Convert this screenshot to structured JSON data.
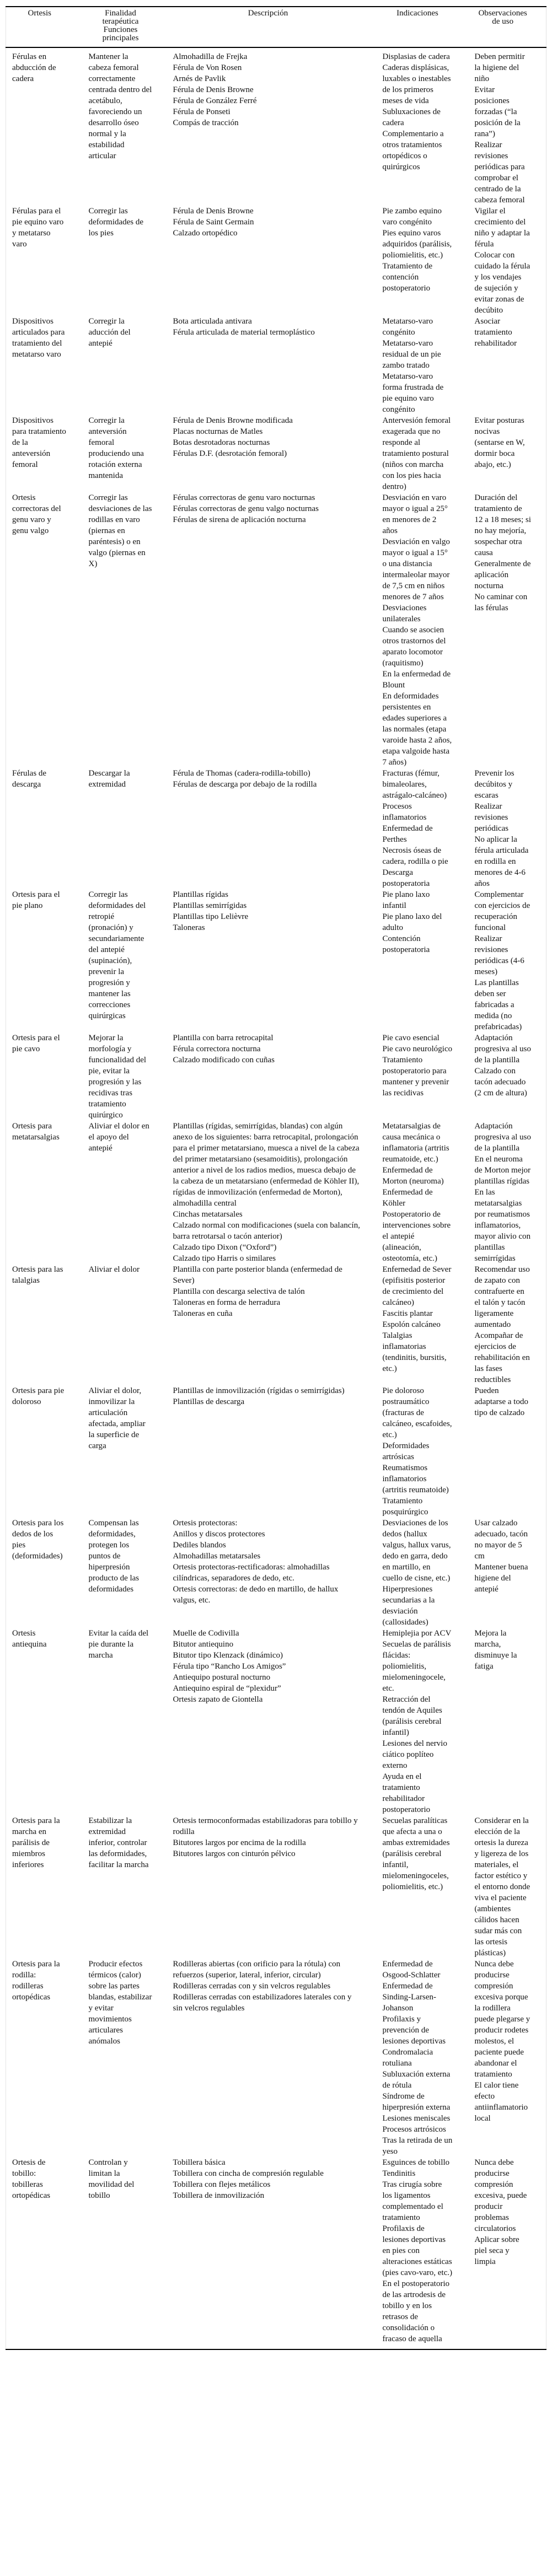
{
  "headers": {
    "ortesis": "Ortesis",
    "finalidad": "Finalidad terapéutica Funciones principales",
    "descripcion": "Descripción",
    "indicaciones": "Indicaciones",
    "observaciones": "Observaciones de uso"
  },
  "rows": [
    {
      "ortesis": [
        "Férulas en abducción de cadera"
      ],
      "finalidad": [
        "Mantener la cabeza femoral correctamente centrada dentro del acetábulo, favoreciendo un desarrollo óseo normal y la estabilidad articular"
      ],
      "descripcion": [
        "Almohadilla de Frejka",
        "Férula de Von Rosen",
        "Arnés de Pavlik",
        "Férula de Denis Browne",
        "Férula de González Ferré",
        "Férula de Ponseti",
        "Compás de tracción"
      ],
      "indicaciones": [
        "Displasias de cadera",
        "Caderas displásicas, luxables o inestables de los primeros meses de vida",
        "Subluxaciones de cadera",
        "Complementario a otros tratamientos ortopédicos o quirúrgicos"
      ],
      "observaciones": [
        "Deben permitir la higiene del niño",
        "Evitar posiciones forzadas (“la posición de la rana”)",
        "Realizar revisiones periódicas para comprobar el centrado de la cabeza femoral"
      ]
    },
    {
      "ortesis": [
        "Férulas para el pie equino varo y metatarso varo"
      ],
      "finalidad": [
        "Corregir las deformidades de los pies"
      ],
      "descripcion": [
        "Férula de Denis Browne",
        "Férula de Saint Germain",
        "Calzado ortopédico"
      ],
      "indicaciones": [
        "Pie zambo equino varo congénito",
        "Pies equino varos adquiridos (parálisis, poliomielitis, etc.)",
        "Tratamiento de contención postoperatorio"
      ],
      "observaciones": [
        "Vigilar el crecimiento del niño y adaptar la férula",
        "Colocar con cuidado la férula y los vendajes de sujeción y evitar zonas de decúbito"
      ]
    },
    {
      "ortesis": [
        "Dispositivos articulados para tratamiento del metatarso varo"
      ],
      "finalidad": [
        "Corregir la aducción del antepié"
      ],
      "descripcion": [
        "Bota articulada antivara",
        "Férula articulada de material termoplástico"
      ],
      "indicaciones": [
        "Metatarso-varo congénito",
        "Metatarso-varo residual de un pie zambo tratado",
        "Metatarso-varo forma frustrada de pie equino varo congénito"
      ],
      "observaciones": [
        "Asociar tratamiento rehabilitador"
      ]
    },
    {
      "ortesis": [
        "Dispositivos para tratamiento de la anteversión femoral"
      ],
      "finalidad": [
        "Corregir la anteversión femoral produciendo una rotación externa mantenida"
      ],
      "descripcion": [
        "Férula de Denis Browne modificada",
        "Placas nocturnas de Matles",
        "Botas desrotadoras nocturnas",
        "Férulas D.F. (desrotación femoral)"
      ],
      "indicaciones": [
        "Antervesión femoral exagerada que no responde al tratamiento postural (niños con marcha con los pies hacia dentro)"
      ],
      "observaciones": [
        "Evitar posturas nocivas (sentarse en W, dormir boca abajo, etc.)"
      ]
    },
    {
      "ortesis": [
        "Ortesis correctoras del genu varo y genu valgo"
      ],
      "finalidad": [
        "Corregir las desviaciones de las rodillas en varo (piernas en paréntesis) o en valgo (piernas en X)"
      ],
      "descripcion": [
        "Férulas correctoras de genu varo nocturnas",
        "Férulas correctoras de genu valgo nocturnas",
        "Férulas de sirena de aplicación nocturna"
      ],
      "indicaciones": [
        "Desviación en varo mayor o igual a 25° en menores de 2 años",
        "Desviación en valgo mayor o igual a 15° o una distancia intermaleolar mayor de 7,5 cm en niños menores de 7 años",
        "Desviaciones unilaterales",
        "Cuando se asocien otros trastornos del aparato locomotor (raquitismo)",
        "En la enfermedad de Blount",
        "En deformidades persistentes en edades superiores a las normales (etapa varoide hasta 2 años, etapa valgoide hasta 7 años)"
      ],
      "observaciones": [
        "Duración del tratamiento de 12 a 18 meses; si no hay mejoría, sospechar otra causa",
        "Generalmente de aplicación nocturna",
        "No caminar con las férulas"
      ]
    },
    {
      "ortesis": [
        "Férulas de descarga"
      ],
      "finalidad": [
        "Descargar la extremidad"
      ],
      "descripcion": [
        "Férula de Thomas (cadera-rodilla-tobillo)",
        "Férulas de descarga por debajo de la rodilla"
      ],
      "indicaciones": [
        "Fracturas (fémur, bimaleolares, astrágalo-calcáneo)",
        "Procesos inflamatorios",
        "Enfermedad de Perthes",
        "Necrosis óseas de cadera, rodilla o pie",
        "Descarga postoperatoria"
      ],
      "observaciones": [
        "Prevenir los decúbitos y escaras",
        "Realizar revisiones periódicas",
        "No aplicar la férula articulada en rodilla en menores de 4-6 años"
      ]
    },
    {
      "ortesis": [
        "Ortesis para el pie plano"
      ],
      "finalidad": [
        "Corregir las deformidades del retropié (pronación) y secundariamente del antepié (supinación), prevenir la progresión y mantener las correcciones quirúrgicas"
      ],
      "descripcion": [
        "Plantillas rígidas",
        "Plantillas semirrígidas",
        "Plantillas tipo Lelièvre",
        "Taloneras"
      ],
      "indicaciones": [
        "Pie plano laxo infantil",
        "Pie plano laxo del adulto",
        "Contención postoperatoria"
      ],
      "observaciones": [
        "Complementar con ejercicios de recuperación funcional",
        "Realizar revisiones periódicas (4-6 meses)",
        "Las plantillas deben ser fabricadas a medida (no prefabricadas)"
      ]
    },
    {
      "ortesis": [
        "Ortesis para el pie cavo"
      ],
      "finalidad": [
        "Mejorar la morfología y funcionalidad del pie, evitar la progresión y las recidivas tras tratamiento quirúrgico"
      ],
      "descripcion": [
        "Plantilla con barra retrocapital",
        "Férula correctora nocturna",
        "Calzado modificado con cuñas"
      ],
      "indicaciones": [
        "Pie cavo esencial",
        "Pie cavo neurológico",
        "Tratamiento postoperatorio para mantener y prevenir las recidivas"
      ],
      "observaciones": [
        "Adaptación progresiva al uso de la plantilla",
        "Calzado con tacón adecuado (2 cm de altura)"
      ]
    },
    {
      "ortesis": [
        "Ortesis para metatarsalgias"
      ],
      "finalidad": [
        "Aliviar el dolor en el apoyo del antepié"
      ],
      "descripcion": [
        "Plantillas (rígidas, semirrígidas, blandas) con algún anexo de los siguientes: barra retrocapital, prolongación para el primer metatarsiano, muesca a nivel de la cabeza del primer metatarsiano (sesamoiditis), prolongación anterior a nivel de los radios medios, muesca debajo de la cabeza de un metatarsiano (enfermedad de Köhler II), rígidas de inmovilización (enfermedad de Morton), almohadilla central",
        "Cinchas metatarsales",
        "Calzado normal con modificaciones (suela con balancín, barra retrotarsal o tacón anterior)",
        "Calzado tipo Dixon (“Oxford”)",
        "Calzado tipo Harris o similares"
      ],
      "indicaciones": [
        "Metatarsalgias de causa mecánica o inflamatoria (artritis reumatoide, etc.)",
        "Enfermedad de Morton (neuroma)",
        "Enfermedad de Köhler",
        "Postoperatorio de intervenciones sobre el antepié (alineación, osteotomía, etc.)"
      ],
      "observaciones": [
        "Adaptación progresiva al uso de la plantilla",
        "En el neuroma de Morton mejor plantillas rígidas",
        "En las metatarsalgias por reumatismos inflamatorios, mayor alivio con plantillas semirrígidas"
      ]
    },
    {
      "ortesis": [
        "Ortesis para las talalgias"
      ],
      "finalidad": [
        "Aliviar el dolor"
      ],
      "descripcion": [
        "Plantilla con parte posterior blanda (enfermedad de Sever)",
        "Plantilla con descarga selectiva de talón",
        "Taloneras en forma de herradura",
        "Taloneras en cuña"
      ],
      "indicaciones": [
        "Enfernedad de Sever (epifisitis posterior de crecimiento del calcáneo)",
        "Fascitis plantar",
        "Espolón calcáneo",
        "Talalgias inflamatorias (tendinitis, bursitis, etc.)"
      ],
      "observaciones": [
        "Recomendar uso de zapato con contrafuerte en el talón y tacón ligeramente aumentado",
        "Acompañar de ejercicios de rehabilitación en las fases reductibles"
      ]
    },
    {
      "ortesis": [
        "Ortesis para pie doloroso"
      ],
      "finalidad": [
        "Aliviar el dolor, inmovilizar la articulación afectada, ampliar la superficie de carga"
      ],
      "descripcion": [
        "Plantillas de inmovilización (rígidas o semirrígidas)",
        "Plantillas de descarga"
      ],
      "indicaciones": [
        "Pie doloroso postraumático (fracturas de calcáneo, escafoides, etc.)",
        "Deformidades artrósicas",
        "Reumatismos inflamatorios (artritis reumatoide)",
        "Tratamiento posquirúrgico"
      ],
      "observaciones": [
        "Pueden adaptarse a todo tipo de calzado"
      ]
    },
    {
      "ortesis": [
        "Ortesis para los dedos de los pies (deformidades)"
      ],
      "finalidad": [
        "Compensan las deformidades, protegen los puntos de hiperpresión producto de las deformidades"
      ],
      "descripcion": [
        "Ortesis protectoras:",
        "Anillos y discos protectores",
        "Dediles blandos",
        "Almohadillas metatarsales",
        "Ortesis protectoras-rectificadoras: almohadillas cilíndricas, separadores de dedo, etc.",
        "Ortesis correctoras: de dedo en martillo, de hallux valgus, etc."
      ],
      "indicaciones": [
        "Desviaciones de los dedos (hallux valgus, hallux varus, dedo en garra, dedo en martillo, en cuello de cisne, etc.)",
        "Hiperpresiones secundarias a la desviación (callosidades)"
      ],
      "observaciones": [
        "Usar calzado adecuado, tacón no mayor de 5 cm",
        "Mantener buena higiene del antepié"
      ]
    },
    {
      "ortesis": [
        "Ortesis antiequina"
      ],
      "finalidad": [
        "Evitar la caída del pie durante la marcha"
      ],
      "descripcion": [
        "Muelle de Codivilla",
        "Bitutor antiequino",
        "Bitutor tipo Klenzack (dinámico)",
        "Férula tipo “Rancho Los Amigos”",
        "Antiequipo postural nocturno",
        "Antiequino espiral de “plexidur”",
        "Ortesis zapato de Giontella"
      ],
      "indicaciones": [
        "Hemiplejia por ACV",
        "Secuelas de parálisis flácidas: poliomielitis, mielomeningocele, etc.",
        "Retracción del tendón de Aquiles (parálisis cerebral infantil)",
        "Lesiones del nervio ciático poplíteo externo",
        "Ayuda en el tratamiento rehabilitador postoperatorio"
      ],
      "observaciones": [
        "Mejora la marcha, disminuye la fatiga"
      ]
    },
    {
      "ortesis": [
        "Ortesis para la marcha en parálisis de miembros inferiores"
      ],
      "finalidad": [
        "Estabilizar la extremidad inferior, controlar las deformidades, facilitar la marcha"
      ],
      "descripcion": [
        "Ortesis termoconformadas estabilizadoras para tobillo y rodilla",
        "Bitutores largos por encima de la rodilla",
        "Bitutores largos con cinturón pélvico"
      ],
      "indicaciones": [
        "Secuelas paralíticas que afecta a una o ambas extremidades (parálisis cerebral infantil, mielomeningoceles, poliomielitis, etc.)"
      ],
      "observaciones": [
        "Considerar en la elección de la ortesis la dureza y ligereza de los materiales, el factor estético y el entorno donde viva el paciente (ambientes cálidos hacen sudar más con las ortesis plásticas)"
      ]
    },
    {
      "ortesis": [
        "Ortesis para la rodilla: rodilleras ortopédicas"
      ],
      "finalidad": [
        "Producir efectos térmicos (calor) sobre las partes blandas, estabilizar y evitar movimientos articulares anómalos"
      ],
      "descripcion": [
        "Rodilleras abiertas (con orificio para la rótula) con refuerzos (superior, lateral, inferior, circular)",
        "Rodilleras cerradas con y sin velcros regulables",
        "Rodilleras cerradas con estabilizadores laterales con y sin velcros regulables"
      ],
      "indicaciones": [
        "Enfermedad de Osgood-Schlatter",
        "Enfermedad de Sinding-Larsen-Johanson",
        "Profilaxis y prevención de lesiones deportivas",
        "Condromalacia rotuliana",
        "Subluxación externa de rótula",
        "Síndrome de hiperpresión externa",
        "Lesiones meniscales",
        "Procesos artrósicos",
        "Tras la retirada de un yeso"
      ],
      "observaciones": [
        "Nunca debe producirse compresión excesiva porque la rodillera puede plegarse y producir rodetes molestos, el paciente puede abandonar el tratamiento",
        "El calor tiene efecto antiinflamatorio local"
      ]
    },
    {
      "ortesis": [
        "Ortesis de tobillo: tobilleras ortopédicas"
      ],
      "finalidad": [
        "Controlan y limitan la movilidad del tobillo"
      ],
      "descripcion": [
        "Tobillera básica",
        "Tobillera con cincha de compresión regulable",
        "Tobillera con flejes metálicos",
        "Tobillera de inmovilización"
      ],
      "indicaciones": [
        "Esguinces de tobillo",
        "Tendinitis",
        "Tras cirugía sobre los ligamentos complementado el tratamiento",
        "Profilaxis de lesiones deportivas en pies con alteraciones estáticas (pies cavo-varo, etc.)",
        "En el postoperatorio de las artrodesis de tobillo y en los retrasos de consolidación o fracaso de aquella"
      ],
      "observaciones": [
        "Nunca debe producirse compresión excesiva, puede producir problemas circulatorios",
        "Aplicar sobre piel seca y limpia"
      ]
    }
  ]
}
